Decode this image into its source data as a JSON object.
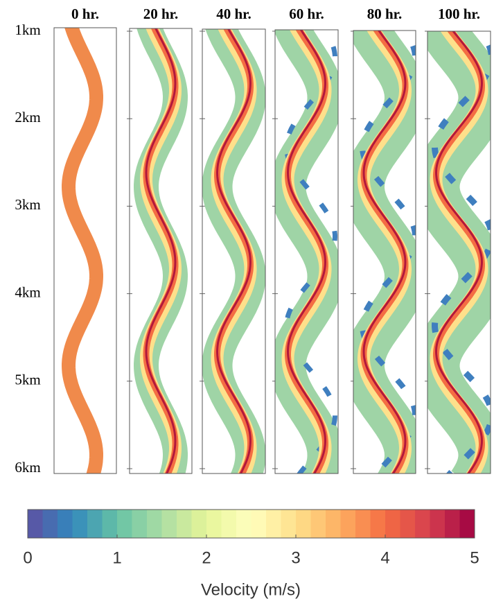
{
  "chart_data": {
    "type": "panels",
    "panels": [
      "0 hr.",
      "20 hr.",
      "40 hr.",
      "60 hr.",
      "80 hr.",
      "100 hr."
    ],
    "ylim": [
      1,
      6
    ],
    "yticks": [
      {
        "value": 1,
        "label": "1km"
      },
      {
        "value": 2,
        "label": "2km"
      },
      {
        "value": 3,
        "label": "3km"
      },
      {
        "value": 4,
        "label": "4km"
      },
      {
        "value": 5,
        "label": "5km"
      },
      {
        "value": 6,
        "label": "6km"
      }
    ],
    "colorbar": {
      "label": "Velocity (m/s)",
      "xlim": [
        0,
        5
      ],
      "xticks": [
        0,
        1,
        2,
        3,
        4,
        5
      ],
      "colormap": [
        "#5e4fa2",
        "#3288bd",
        "#66c2a5",
        "#abdda4",
        "#e6f598",
        "#ffffbf",
        "#fee08b",
        "#fdae61",
        "#f46d43",
        "#d53e4f",
        "#9e0142"
      ]
    }
  }
}
